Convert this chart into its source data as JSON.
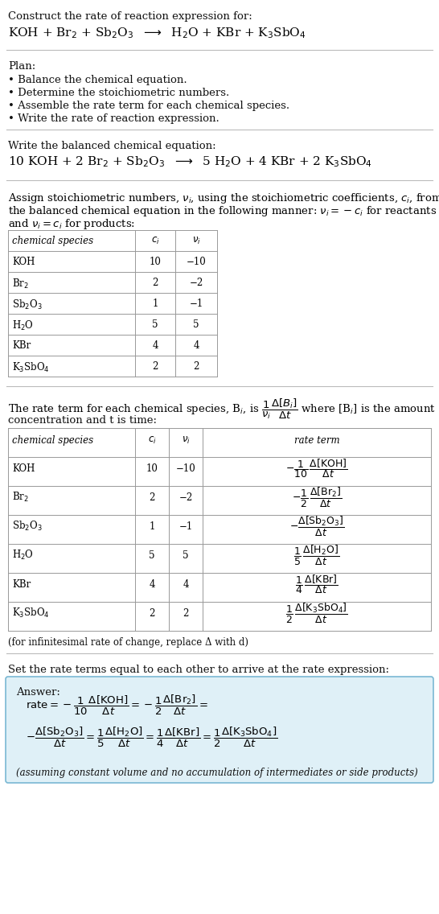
{
  "title_line1": "Construct the rate of reaction expression for:",
  "plan_header": "Plan:",
  "plan_items": [
    "Balance the chemical equation.",
    "Determine the stoichiometric numbers.",
    "Assemble the rate term for each chemical species.",
    "Write the rate of reaction expression."
  ],
  "balanced_header": "Write the balanced chemical equation:",
  "stoich_text1": "Assign stoichiometric numbers, ",
  "stoich_text2": "the balanced chemical equation in the following manner: ",
  "stoich_text3": "and ",
  "rate_term_text2": "concentration and t is time:",
  "infinitesimal_note": "(for infinitesimal rate of change, replace Δ with d)",
  "set_rate_text": "Set the rate terms equal to each other to arrive at the rate expression:",
  "answer_label": "Answer:",
  "answer_box_color": "#dff0f7",
  "answer_box_border": "#7ab8d4",
  "assuming_note": "(assuming constant volume and no accumulation of intermediates or side products)",
  "bg_color": "#ffffff",
  "table_border_color": "#999999",
  "ci_vals": [
    "10",
    "2",
    "1",
    "5",
    "4",
    "2"
  ],
  "ni_vals": [
    "−10",
    "−2",
    "−1",
    "5",
    "4",
    "2"
  ]
}
